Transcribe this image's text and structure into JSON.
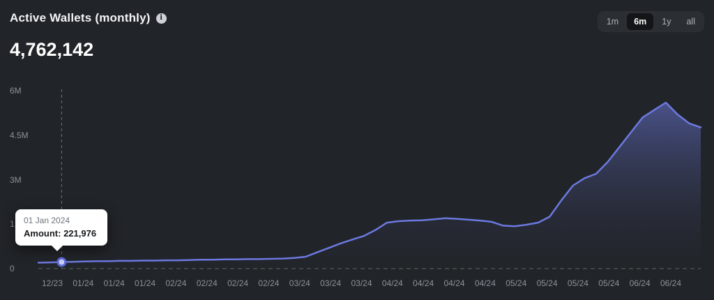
{
  "header": {
    "title": "Active Wallets (monthly)",
    "info_glyph": "i",
    "value": "4,762,142"
  },
  "ranges": [
    {
      "label": "1m",
      "selected": false
    },
    {
      "label": "6m",
      "selected": true
    },
    {
      "label": "1y",
      "selected": false
    },
    {
      "label": "all",
      "selected": false
    }
  ],
  "colors": {
    "background": "#212428",
    "line": "#6c79e0",
    "area_top": "#6b77d8",
    "baseline_dash": "#5a675e",
    "hover_dash": "#73777e",
    "marker_fill": "#c9cff5",
    "marker_stroke": "#5c6ad9"
  },
  "chart_data": {
    "type": "area",
    "title": "Active Wallets (monthly)",
    "ylim": [
      0,
      6000000
    ],
    "ymax": 6000000,
    "grid": "baseline-only",
    "legend": "none",
    "yticks": [
      {
        "label": "6M",
        "value": 6000000
      },
      {
        "label": "4.5M",
        "value": 4500000
      },
      {
        "label": "3M",
        "value": 3000000
      },
      {
        "label": "1.5M",
        "value": 1500000
      },
      {
        "label": "0",
        "value": 0
      }
    ],
    "x_labels": [
      "12/23",
      "01/24",
      "01/24",
      "01/24",
      "02/24",
      "02/24",
      "02/24",
      "02/24",
      "03/24",
      "03/24",
      "03/24",
      "04/24",
      "04/24",
      "04/24",
      "04/24",
      "05/24",
      "05/24",
      "05/24",
      "05/24",
      "06/24",
      "06/24"
    ],
    "values": [
      200000,
      210000,
      221976,
      230000,
      240000,
      250000,
      250000,
      260000,
      260000,
      270000,
      270000,
      280000,
      280000,
      290000,
      300000,
      300000,
      310000,
      310000,
      320000,
      320000,
      330000,
      340000,
      360000,
      400000,
      550000,
      700000,
      850000,
      980000,
      1100000,
      1300000,
      1550000,
      1600000,
      1620000,
      1630000,
      1660000,
      1700000,
      1680000,
      1650000,
      1620000,
      1580000,
      1450000,
      1430000,
      1480000,
      1550000,
      1750000,
      2300000,
      2800000,
      3050000,
      3200000,
      3600000,
      4100000,
      4600000,
      5100000,
      5350000,
      5600000,
      5200000,
      4900000,
      4762142
    ],
    "hover": {
      "index": 2,
      "date": "01 Jan 2024",
      "amount_label": "Amount:",
      "amount_value": "221,976"
    }
  }
}
